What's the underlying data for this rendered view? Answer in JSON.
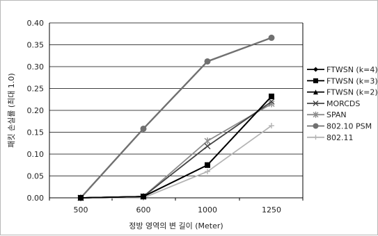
{
  "chart_data": {
    "type": "line",
    "x": [
      "500",
      "600",
      "1000",
      "1250"
    ],
    "xlabel": "정방 영역의 변 길이 (Meter)",
    "ylabel": "패킷 손실률 (최대 1.0)",
    "ylim": [
      0,
      0.4
    ],
    "yticks": [
      "0.00",
      "0.05",
      "0.10",
      "0.15",
      "0.20",
      "0.25",
      "0.30",
      "0.35",
      "0.40"
    ],
    "grid": true,
    "legend_position": "right",
    "series": [
      {
        "name": "FTWSN (k=4)",
        "marker": "diamond",
        "color": "#000000",
        "values": [
          0.0,
          0.003,
          0.075,
          0.232
        ]
      },
      {
        "name": "FTWSN (k=3)",
        "marker": "square",
        "color": "#000000",
        "values": [
          0.0,
          0.003,
          0.075,
          0.232
        ]
      },
      {
        "name": "FTWSN (k=2)",
        "marker": "triangle",
        "color": "#000000",
        "values": [
          0.0,
          0.003,
          0.075,
          0.232
        ]
      },
      {
        "name": "MORCDS",
        "marker": "x",
        "color": "#444444",
        "values": [
          0.0,
          0.003,
          0.118,
          0.22
        ]
      },
      {
        "name": "SPAN",
        "marker": "star",
        "color": "#8c8c8c",
        "values": [
          0.0,
          0.003,
          0.13,
          0.215
        ]
      },
      {
        "name": "802.10 PSM",
        "marker": "circle",
        "color": "#707070",
        "values": [
          0.0,
          0.158,
          0.312,
          0.366
        ]
      },
      {
        "name": "802.11",
        "marker": "plus",
        "color": "#b4b4b4",
        "values": [
          0.0,
          0.0,
          0.06,
          0.165
        ]
      }
    ]
  }
}
